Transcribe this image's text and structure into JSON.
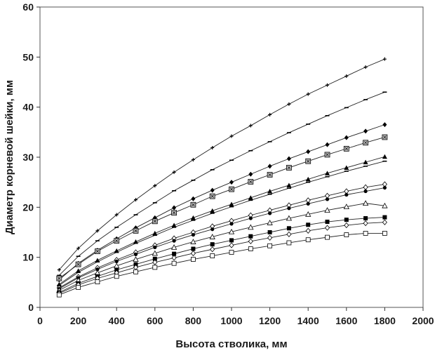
{
  "chart_data": {
    "type": "line",
    "title": "",
    "xlabel": "Высота стволика, мм",
    "ylabel": "Диаметр корневой шейки, мм",
    "xlim": [
      0,
      2000
    ],
    "ylim": [
      0,
      60
    ],
    "xticks": [
      0,
      200,
      400,
      600,
      800,
      1000,
      1200,
      1400,
      1600,
      1800,
      2000
    ],
    "yticks": [
      0,
      10,
      20,
      30,
      40,
      50,
      60
    ],
    "grid": false,
    "legend": "none",
    "x": [
      100,
      200,
      300,
      400,
      500,
      600,
      700,
      800,
      900,
      1000,
      1100,
      1200,
      1300,
      1400,
      1500,
      1600,
      1700,
      1800
    ],
    "series": [
      {
        "marker": "plus",
        "values": [
          7.5,
          11.8,
          15.3,
          18.5,
          21.5,
          24.3,
          27.0,
          29.5,
          31.9,
          34.2,
          36.3,
          38.5,
          40.6,
          42.6,
          44.4,
          46.2,
          48.0,
          49.6
        ]
      },
      {
        "marker": "dash",
        "values": [
          6.4,
          10.2,
          13.3,
          16.0,
          18.5,
          20.9,
          23.3,
          25.4,
          27.5,
          29.4,
          31.3,
          33.1,
          34.9,
          36.6,
          38.3,
          39.9,
          41.5,
          43.0
        ]
      },
      {
        "marker": "diamond-filled",
        "values": [
          5.5,
          8.8,
          11.4,
          13.7,
          15.9,
          17.9,
          19.9,
          21.7,
          23.4,
          25.0,
          26.6,
          28.2,
          29.7,
          31.1,
          32.5,
          33.9,
          35.2,
          36.5
        ]
      },
      {
        "marker": "square-star",
        "values": [
          5.8,
          8.6,
          11.2,
          13.3,
          15.3,
          17.2,
          18.9,
          20.5,
          22.2,
          23.6,
          25.1,
          26.5,
          27.9,
          29.2,
          30.5,
          31.7,
          32.9,
          34.0
        ]
      },
      {
        "marker": "triangle-filled",
        "values": [
          4.6,
          7.3,
          9.4,
          11.3,
          13.1,
          14.8,
          16.4,
          17.9,
          19.3,
          20.6,
          21.9,
          23.2,
          24.4,
          25.6,
          26.8,
          27.9,
          29.0,
          30.1
        ]
      },
      {
        "marker": "dash",
        "values": [
          4.4,
          7.0,
          9.1,
          11.0,
          12.8,
          14.4,
          16.0,
          17.4,
          18.8,
          20.1,
          21.4,
          22.6,
          23.8,
          25.0,
          26.1,
          27.2,
          28.2,
          29.2
        ]
      },
      {
        "marker": "diamond-open",
        "values": [
          3.9,
          6.1,
          7.9,
          9.5,
          11.0,
          12.4,
          13.8,
          15.0,
          16.2,
          17.3,
          18.4,
          19.4,
          20.4,
          21.4,
          22.3,
          23.2,
          24.0,
          24.6
        ]
      },
      {
        "marker": "circle-filled",
        "values": [
          3.7,
          5.9,
          7.6,
          9.2,
          10.6,
          12.0,
          13.3,
          14.5,
          15.6,
          16.7,
          17.8,
          18.8,
          19.8,
          20.7,
          21.6,
          22.5,
          23.2,
          23.9
        ]
      },
      {
        "marker": "triangle-open",
        "values": [
          3.4,
          5.4,
          6.9,
          8.3,
          9.6,
          10.8,
          12.0,
          13.1,
          14.1,
          15.1,
          16.0,
          16.9,
          17.8,
          18.6,
          19.4,
          20.1,
          20.8,
          20.3
        ]
      },
      {
        "marker": "square-filled",
        "values": [
          3.0,
          4.8,
          6.2,
          7.5,
          8.6,
          9.7,
          10.7,
          11.7,
          12.6,
          13.4,
          14.2,
          15.0,
          15.8,
          16.5,
          17.1,
          17.5,
          17.8,
          18.0
        ]
      },
      {
        "marker": "diamond-open",
        "values": [
          2.8,
          4.5,
          5.8,
          6.9,
          8.0,
          9.0,
          9.9,
          10.8,
          11.6,
          12.4,
          13.2,
          13.9,
          14.6,
          15.3,
          15.9,
          16.4,
          16.8,
          17.0
        ]
      },
      {
        "marker": "square-open",
        "values": [
          2.5,
          4.0,
          5.1,
          6.2,
          7.1,
          8.0,
          8.8,
          9.6,
          10.3,
          11.0,
          11.7,
          12.3,
          12.9,
          13.5,
          14.0,
          14.5,
          14.8,
          14.8
        ]
      }
    ]
  }
}
